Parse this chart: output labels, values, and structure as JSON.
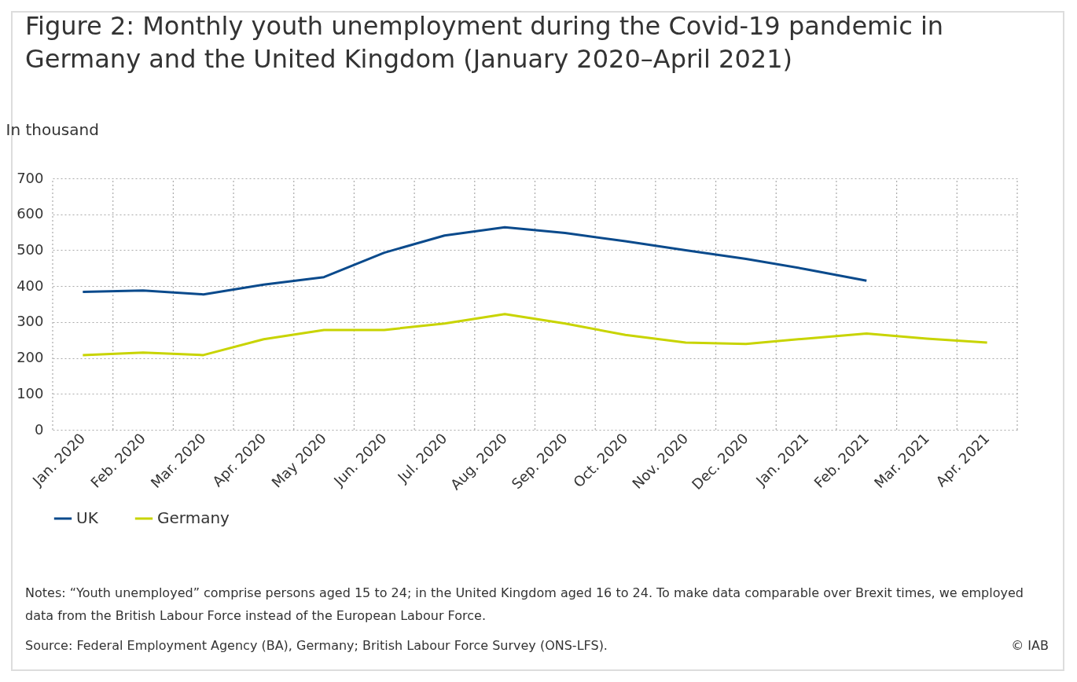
{
  "chart_data": {
    "type": "line",
    "title": "Figure 2: Monthly youth unemployment during the Covid-19 pandemic in Germany and the United Kingdom (January 2020–April 2021)",
    "ylabel": "In thousand",
    "categories": [
      "Jan. 2020",
      "Feb. 2020",
      "Mar. 2020",
      "Apr. 2020",
      "May 2020",
      "Jun. 2020",
      "Jul. 2020",
      "Aug. 2020",
      "Sep. 2020",
      "Oct. 2020",
      "Nov. 2020",
      "Dec. 2020",
      "Jan. 2021",
      "Feb. 2021",
      "Mar. 2021",
      "Apr. 2021"
    ],
    "series": [
      {
        "name": "UK",
        "color": "#0a4a8c",
        "values": [
          384,
          388,
          377,
          404,
          425,
          493,
          541,
          564,
          548,
          525,
          500,
          476,
          447,
          415,
          null,
          null
        ]
      },
      {
        "name": "Germany",
        "color": "#c8d400",
        "values": [
          208,
          215,
          208,
          252,
          278,
          278,
          296,
          322,
          296,
          264,
          243,
          239,
          254,
          268,
          254,
          243
        ]
      }
    ],
    "ylim": [
      0,
      700
    ],
    "yticks": [
      0,
      100,
      200,
      300,
      400,
      500,
      600,
      700
    ],
    "grid": true,
    "legend": "bottom left",
    "marker": "none",
    "line_style": "solid",
    "annotations": [
      "Notes: “Youth unemployed” comprise persons aged 15 to 24; in the United Kingdom aged 16 to 24. To make data comparable over Brexit times, we employed data from the British Labour Force instead of the European Labour Force.",
      "Source: Federal Employment Agency (BA), Germany; British Labour Force Survey (ONS-LFS).",
      "© IAB"
    ]
  }
}
